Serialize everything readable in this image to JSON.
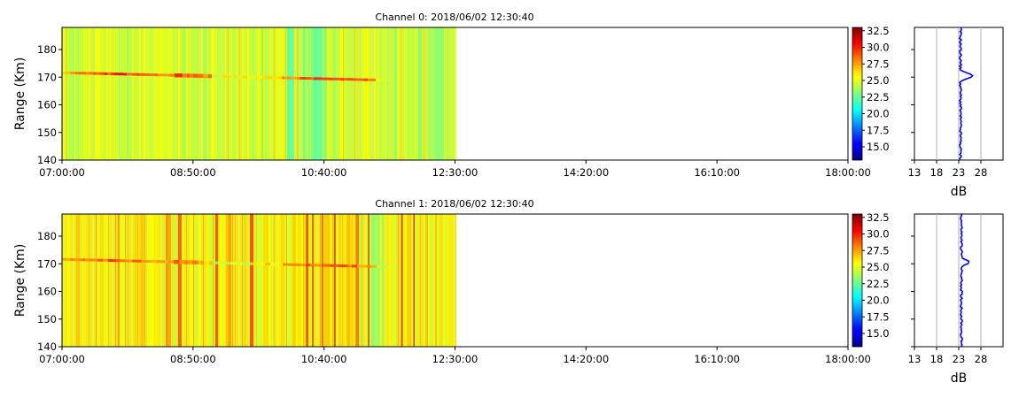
{
  "chart_data": [
    {
      "type": "heatmap",
      "title": "Channel 0: 2018/06/02 12:30:40",
      "ylabel": "Range (Km)",
      "xlabel": "",
      "x_range": [
        "07:00:00",
        "18:00:00"
      ],
      "x_ticks": [
        "07:00:00",
        "08:50:00",
        "10:40:00",
        "12:30:00",
        "14:20:00",
        "16:10:00",
        "18:00:00"
      ],
      "data_end": "12:30:00",
      "y_range": [
        140,
        188
      ],
      "y_ticks": [
        140,
        150,
        160,
        170,
        180
      ],
      "echo_band_km": 170,
      "echo_band_end": "11:20:00",
      "colorscale": "jet",
      "color_range": [
        13,
        33
      ],
      "colorbar_ticks": [
        "15.0",
        "17.5",
        "20.0",
        "22.5",
        "25.0",
        "27.5",
        "30.0",
        "32.5"
      ],
      "profile": {
        "xlabel": "dB",
        "x_ticks": [
          13,
          18,
          23,
          28
        ],
        "x_range": [
          13,
          33
        ],
        "grid_x": true,
        "line_color": "#0000ff",
        "baseline_db": 23.4,
        "peak_db": 26.3,
        "peak_range_km": 170.5
      }
    },
    {
      "type": "heatmap",
      "title": "Channel 1: 2018/06/02 12:30:40",
      "ylabel": "Range (Km)",
      "xlabel": "",
      "x_range": [
        "07:00:00",
        "18:00:00"
      ],
      "x_ticks": [
        "07:00:00",
        "08:50:00",
        "10:40:00",
        "12:30:00",
        "14:20:00",
        "16:10:00",
        "18:00:00"
      ],
      "data_end": "12:30:00",
      "y_range": [
        140,
        188
      ],
      "y_ticks": [
        140,
        150,
        160,
        170,
        180
      ],
      "echo_band_km": 170,
      "echo_band_end": "11:20:00",
      "colorscale": "jet",
      "color_range": [
        13,
        33
      ],
      "colorbar_ticks": [
        "15.0",
        "17.5",
        "20.0",
        "22.5",
        "25.0",
        "27.5",
        "30.0",
        "32.5"
      ],
      "profile": {
        "xlabel": "dB",
        "x_ticks": [
          13,
          18,
          23,
          28
        ],
        "x_range": [
          13,
          33
        ],
        "grid_x": true,
        "line_color": "#0000ff",
        "baseline_db": 23.6,
        "peak_db": 25.3,
        "peak_range_km": 170.5
      }
    }
  ]
}
